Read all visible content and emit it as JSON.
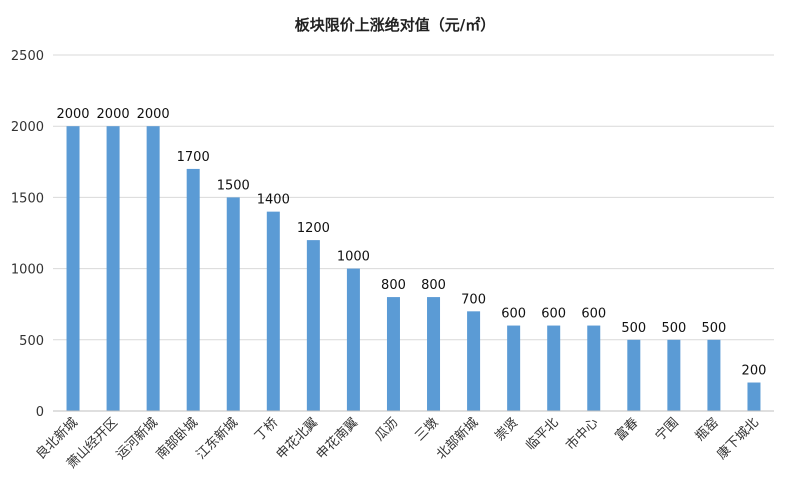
{
  "chart_data": {
    "type": "bar",
    "title": "板块限价上涨绝对值（元/㎡）",
    "xlabel": "",
    "ylabel": "",
    "categories": [
      "良北新城",
      "萧山经开区",
      "运河新城",
      "南部卧城",
      "江东新城",
      "丁桥",
      "申花北翼",
      "申花南翼",
      "瓜沥",
      "三墩",
      "北部新城",
      "崇贤",
      "临平北",
      "市中心",
      "富春",
      "宁围",
      "瓶窑",
      "康下城北"
    ],
    "values": [
      2000,
      2000,
      2000,
      1700,
      1500,
      1400,
      1200,
      1000,
      800,
      800,
      700,
      600,
      600,
      600,
      500,
      500,
      500,
      200
    ],
    "ylim": [
      0,
      2500
    ],
    "yticks": [
      0,
      500,
      1000,
      1500,
      2000,
      2500
    ],
    "grid": true,
    "legend": "none",
    "bar_color": "#5b9bd5"
  }
}
